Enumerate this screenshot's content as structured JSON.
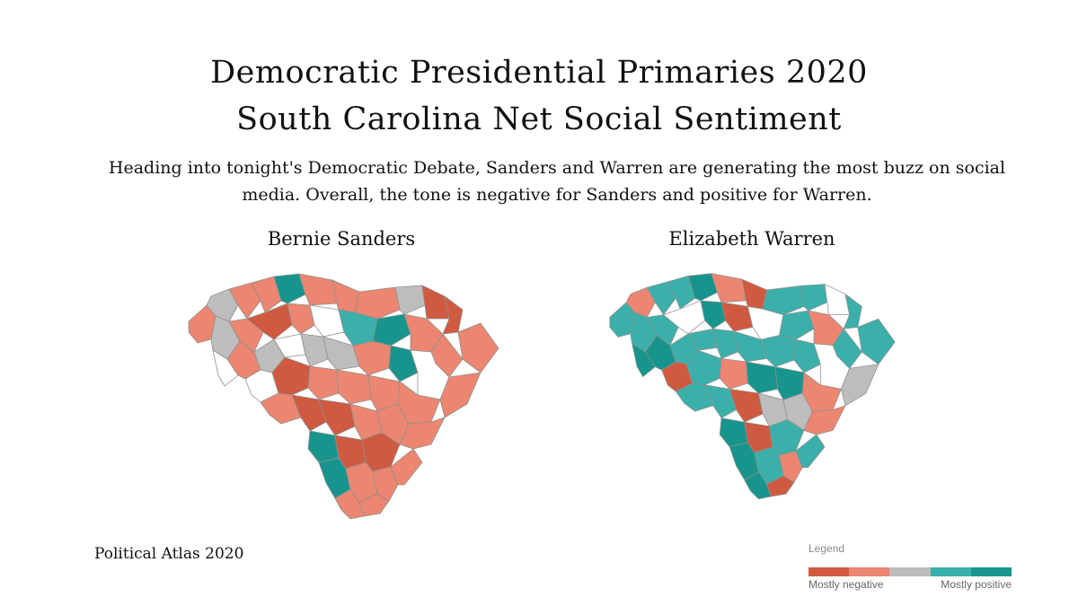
{
  "header": {
    "title_line1": "Democratic Presidential Primaries 2020",
    "title_line2": "South Carolina Net Social Sentiment",
    "subtitle": "Heading into tonight's Democratic Debate, Sanders and Warren are generating the most buzz on social media. Overall, the tone is negative for Sanders and positive for Warren."
  },
  "maps": [
    {
      "title": "Bernie Sanders",
      "dominant_category": "Somewhat negative",
      "county_category_counts": {
        "Mostly negative": 8,
        "Somewhat negative": 26,
        "Neutral": 5,
        "Somewhat positive": 2,
        "Mostly positive": 4,
        "No data": 7
      }
    },
    {
      "title": "Elizabeth Warren",
      "dominant_category": "Somewhat positive",
      "county_category_counts": {
        "Mostly negative": 6,
        "Somewhat negative": 6,
        "Neutral": 3,
        "Somewhat positive": 23,
        "Mostly positive": 8,
        "No data": 6
      }
    }
  ],
  "legend": {
    "title": "Legend",
    "low_label": "Mostly negative",
    "high_label": "Mostly positive",
    "colors": [
      "#cf5a40",
      "#ec8670",
      "#bdbdbd",
      "#3bb0aa",
      "#17958d"
    ],
    "no_data_color": "#ffffff"
  },
  "credit": "Political Atlas 2020"
}
